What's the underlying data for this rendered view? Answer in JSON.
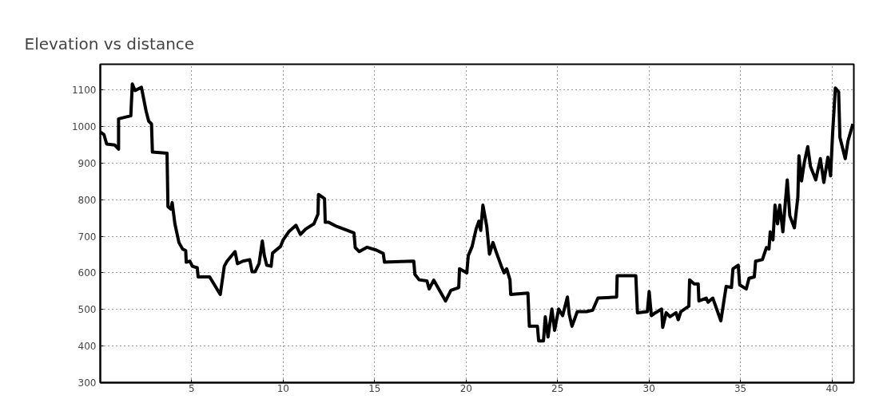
{
  "chart_data": {
    "type": "line",
    "title": "Elevation vs distance",
    "xlim": [
      0,
      41.2
    ],
    "xticks": [
      5,
      10,
      15,
      20,
      25,
      30,
      35,
      40
    ],
    "ylim": [
      300,
      1170
    ],
    "yticks": [
      300,
      400,
      500,
      600,
      700,
      800,
      900,
      1000,
      1100
    ],
    "grid": true,
    "line_style": "solid",
    "marker": "none",
    "series": [
      {
        "color": "#000000",
        "x": [
          0,
          0.2,
          0.35,
          0.8,
          1.0,
          1.0,
          1.67,
          1.75,
          1.9,
          2.25,
          2.5,
          2.65,
          2.8,
          2.85,
          3.65,
          3.7,
          3.86,
          3.93,
          4.08,
          4.3,
          4.5,
          4.67,
          4.7,
          4.9,
          5.03,
          5.3,
          5.35,
          5.98,
          6.56,
          6.78,
          6.93,
          7.37,
          7.5,
          7.8,
          8.17,
          8.3,
          8.46,
          8.68,
          8.86,
          8.97,
          9.1,
          9.34,
          9.42,
          9.85,
          10.0,
          10.3,
          10.7,
          10.94,
          11.24,
          11.68,
          11.9,
          11.93,
          12.26,
          12.3,
          12.49,
          12.92,
          13.5,
          13.87,
          13.94,
          14.16,
          14.59,
          15.1,
          15.47,
          15.54,
          16.41,
          17.14,
          17.2,
          17.43,
          17.86,
          17.98,
          18.23,
          18.88,
          19.17,
          19.6,
          19.64,
          20.04,
          20.12,
          20.33,
          20.55,
          20.7,
          20.8,
          20.92,
          21.13,
          21.28,
          21.47,
          21.64,
          21.93,
          22.08,
          22.22,
          22.4,
          22.44,
          23.38,
          23.46,
          23.9,
          23.97,
          24.23,
          24.33,
          24.48,
          24.69,
          24.84,
          25.06,
          25.28,
          25.54,
          25.64,
          25.79,
          26.08,
          26.58,
          26.92,
          27.21,
          28.23,
          28.26,
          29.28,
          29.37,
          29.91,
          30.01,
          30.13,
          30.35,
          30.69,
          30.75,
          30.94,
          31.15,
          31.48,
          31.6,
          31.74,
          32.18,
          32.22,
          32.47,
          32.69,
          32.73,
          33.13,
          33.23,
          33.49,
          33.93,
          34.22,
          34.51,
          34.59,
          34.88,
          34.96,
          35.32,
          35.47,
          35.76,
          35.83,
          36.2,
          36.42,
          36.56,
          36.63,
          36.78,
          36.89,
          37.03,
          37.15,
          37.32,
          37.56,
          37.7,
          37.95,
          38.14,
          38.2,
          38.34,
          38.49,
          38.68,
          38.83,
          39.12,
          39.37,
          39.56,
          39.78,
          39.93,
          40.04,
          40.19,
          40.37,
          40.44,
          40.73,
          40.88,
          41.15
        ],
        "values": [
          985,
          978,
          952,
          949,
          938,
          1021,
          1029,
          1116,
          1098,
          1107,
          1043,
          1014,
          1007,
          930,
          927,
          781,
          774,
          792,
          734,
          683,
          665,
          661,
          629,
          632,
          618,
          614,
          589,
          589,
          541,
          618,
          632,
          658,
          625,
          632,
          636,
          603,
          603,
          625,
          687,
          647,
          621,
          618,
          654,
          672,
          690,
          712,
          730,
          705,
          720,
          734,
          760,
          814,
          803,
          738,
          738,
          727,
          716,
          709,
          669,
          658,
          670,
          662,
          653,
          629,
          631,
          632,
          596,
          581,
          578,
          556,
          580,
          523,
          552,
          560,
          611,
          600,
          647,
          672,
          720,
          741,
          716,
          785,
          727,
          651,
          683,
          658,
          618,
          600,
          611,
          581,
          541,
          545,
          454,
          454,
          414,
          414,
          480,
          425,
          501,
          443,
          501,
          483,
          534,
          487,
          454,
          494,
          494,
          498,
          531,
          534,
          592,
          592,
          491,
          494,
          549,
          483,
          491,
          501,
          451,
          491,
          480,
          491,
          472,
          494,
          509,
          581,
          570,
          570,
          523,
          531,
          520,
          531,
          469,
          563,
          560,
          611,
          621,
          567,
          556,
          585,
          589,
          632,
          636,
          669,
          665,
          712,
          690,
          785,
          734,
          785,
          712,
          854,
          756,
          723,
          807,
          920,
          851,
          901,
          945,
          891,
          854,
          912,
          847,
          916,
          865,
          981,
          1105,
          1094,
          970,
          912,
          960,
          1007
        ]
      }
    ]
  }
}
